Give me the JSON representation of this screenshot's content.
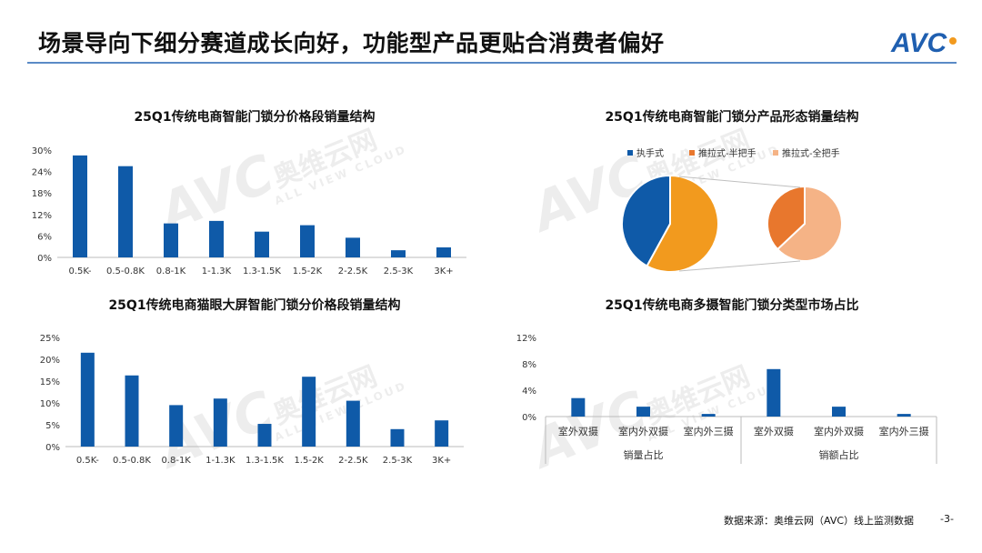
{
  "header": {
    "title": "场景导向下细分赛道成长向好，功能型产品更贴合消费者偏好",
    "logo_text": "AVC"
  },
  "watermark": {
    "brand": "AVC",
    "text_cn": "奥维云网",
    "text_en": "ALL VIEW CLOUD"
  },
  "footer": {
    "source": "数据来源：奥维云网（AVC）线上监测数据",
    "page": "-3-"
  },
  "colors": {
    "blue": "#0f5aa8",
    "orange": "#f29a1e",
    "dark_orange": "#e8772d",
    "light_orange": "#f5b386",
    "rule": "#5a8ac6"
  },
  "chart_data": [
    {
      "id": "price-band-bar",
      "type": "bar",
      "title": "25Q1传统电商智能门锁分价格段销量结构",
      "categories": [
        "0.5K-",
        "0.5-0.8K",
        "0.8-1K",
        "1-1.3K",
        "1.3-1.5K",
        "1.5-2K",
        "2-2.5K",
        "2.5-3K",
        "3K+"
      ],
      "values": [
        28.5,
        25.5,
        9.5,
        10.2,
        7.2,
        9.0,
        5.5,
        2.0,
        2.8
      ],
      "yticks": [
        "0%",
        "6%",
        "12%",
        "18%",
        "24%",
        "30%"
      ],
      "ylim": [
        0,
        30
      ],
      "color": "#0f5aa8"
    },
    {
      "id": "form-pie",
      "type": "pie",
      "title": "25Q1传统电商智能门锁分产品形态销量结构",
      "legend": [
        "执手式",
        "推拉式-半把手",
        "推拉式-全把手"
      ],
      "legend_position": "top",
      "main_slices": [
        {
          "label": "执手式",
          "value": 42,
          "color": "#0f5aa8"
        },
        {
          "label": "推拉式",
          "value": 58,
          "color": "#f29a1e"
        }
      ],
      "breakdown_slices": [
        {
          "label": "推拉式-全把手",
          "value": 63,
          "color": "#f5b386"
        },
        {
          "label": "推拉式-半把手",
          "value": 37,
          "color": "#e8772d"
        }
      ]
    },
    {
      "id": "cat-eye-bar",
      "type": "bar",
      "title": "25Q1传统电商猫眼大屏智能门锁分价格段销量结构",
      "categories": [
        "0.5K-",
        "0.5-0.8K",
        "0.8-1K",
        "1-1.3K",
        "1.3-1.5K",
        "1.5-2K",
        "2-2.5K",
        "2.5-3K",
        "3K+"
      ],
      "values": [
        21.5,
        16.3,
        9.5,
        11.0,
        5.2,
        16.0,
        10.5,
        4.0,
        6.0
      ],
      "yticks": [
        "0%",
        "5%",
        "10%",
        "15%",
        "20%",
        "25%"
      ],
      "ylim": [
        0,
        25
      ],
      "color": "#0f5aa8"
    },
    {
      "id": "multi-camera-bar",
      "type": "bar",
      "title": "25Q1传统电商多摄智能门锁分类型市场占比",
      "groups": [
        {
          "label": "销量占比",
          "categories": [
            "室外双摄",
            "室内外双摄",
            "室内外三摄"
          ],
          "values": [
            2.8,
            1.5,
            0.4
          ]
        },
        {
          "label": "销额占比",
          "categories": [
            "室外双摄",
            "室内外双摄",
            "室内外三摄"
          ],
          "values": [
            7.2,
            1.5,
            0.4
          ]
        }
      ],
      "yticks": [
        "0%",
        "4%",
        "8%",
        "12%"
      ],
      "ylim": [
        0,
        12
      ],
      "color": "#0f5aa8"
    }
  ]
}
